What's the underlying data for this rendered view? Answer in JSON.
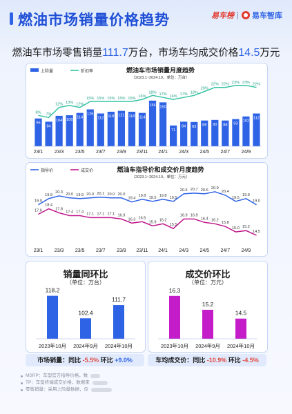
{
  "header": {
    "title": "燃油市场销量价格趋势",
    "brand_left": "易车榜",
    "brand_right": "易车智库"
  },
  "subtitle": {
    "prefix": "燃油车市场零售销量",
    "volume": "111.7",
    "mid": "万台，市场车均成交价格",
    "price": "14.5",
    "suffix": "万元"
  },
  "chart_data": [
    {
      "type": "bar",
      "title": "燃油车市场销量月度趋势",
      "subtitle": "（2023.1~2024.10，单位：万台）",
      "categories": [
        "23/1",
        "23/2",
        "23/3",
        "23/4",
        "23/5",
        "23/6",
        "23/7",
        "23/8",
        "23/9",
        "23/10",
        "23/11",
        "23/12",
        "24/1",
        "24/2",
        "24/3",
        "24/4",
        "24/5",
        "24/6",
        "24/7",
        "24/8",
        "24/9",
        "24/10"
      ],
      "x_tick_labels": [
        "23/1",
        "23/3",
        "23/5",
        "23/7",
        "23/9",
        "23/11",
        "24/1",
        "24/3",
        "24/5",
        "24/7",
        "24/9"
      ],
      "series": [
        {
          "name": "上险量",
          "kind": "bar",
          "color": "#2f63e6",
          "values": [
            95,
            84,
            104,
            106,
            114,
            126,
            112,
            118,
            121,
            118,
            114,
            156,
            150,
            71,
            84,
            83,
            88,
            90,
            88,
            93,
            102,
            112
          ]
        },
        {
          "name": "折扣率",
          "kind": "line",
          "color": "#34c3a3",
          "values": [
            8,
            7,
            12,
            13,
            12,
            15,
            15,
            15,
            15,
            15,
            16,
            18,
            17,
            16,
            17,
            18,
            20,
            22,
            22,
            23,
            23,
            22
          ],
          "labels": [
            "8%",
            "7%",
            "12%",
            "13%",
            "12%",
            "15%",
            "15%",
            "15%",
            "15%",
            "15%",
            "16%",
            "18%",
            "17%",
            "16%",
            "17%",
            "18%",
            "20%",
            "22%",
            "22%",
            "23%",
            "23%",
            "22%"
          ]
        }
      ]
    },
    {
      "type": "line",
      "title": "燃油车指导价和成交价月度趋势",
      "subtitle": "（2023.1~2024.10，单位：万元）",
      "categories": [
        "23/1",
        "23/2",
        "23/3",
        "23/4",
        "23/5",
        "23/6",
        "23/7",
        "23/8",
        "23/9",
        "23/10",
        "23/11",
        "23/12",
        "24/1",
        "24/2",
        "24/3",
        "24/4",
        "24/5",
        "24/6",
        "24/7",
        "24/8",
        "24/9",
        "24/10"
      ],
      "x_tick_labels": [
        "23/1",
        "23/3",
        "23/5",
        "23/7",
        "23/9",
        "23/11",
        "24/1",
        "24/3",
        "24/5",
        "24/7",
        "24/9"
      ],
      "series": [
        {
          "name": "指导价",
          "color": "#2f63e6",
          "values": [
            19.0,
            19.9,
            20.3,
            20.0,
            19.9,
            20.0,
            20.1,
            20.0,
            20.0,
            19.4,
            19.8,
            19.5,
            19.8,
            19.5,
            20.6,
            20.7,
            20.6,
            20.9,
            20.4,
            19.5,
            19.9,
            19.0
          ]
        },
        {
          "name": "成交价",
          "color": "#c1178b",
          "values": [
            17.6,
            18.4,
            17.8,
            17.4,
            17.4,
            17.1,
            17.1,
            17.1,
            16.9,
            16.3,
            16.5,
            15.9,
            16.2,
            15.5,
            16.9,
            16.9,
            16.4,
            16.2,
            15.8,
            15.0,
            15.2,
            14.5
          ]
        }
      ]
    },
    {
      "type": "bar",
      "title": "销量同环比",
      "unit_note": "（单位：万台）",
      "categories": [
        "2023年10月",
        "2024年9月",
        "2024年10月"
      ],
      "values": [
        118.2,
        102.4,
        111.7
      ],
      "color": "#2f63e6",
      "summary": {
        "label": "市场销量：同比",
        "yoy": "-5.5%",
        "mid": "环比",
        "mom": "+9.0%"
      }
    },
    {
      "type": "bar",
      "title": "成交价环比",
      "unit_note": "（单位：万元）",
      "categories": [
        "2023年10月",
        "2024年9月",
        "2024年10月"
      ],
      "values": [
        16.3,
        15.2,
        14.5
      ],
      "color": "#c41cc9",
      "summary": {
        "label": "车均成交价：同比",
        "yoy": "-10.9%",
        "mid": "环比",
        "mom": "-4.5%"
      }
    }
  ],
  "notes": [
    {
      "text": "MSRP：车型官方指导价格，数"
    },
    {
      "text": "TP：车型终端成交价格，数据来"
    },
    {
      "text": "零售销量：采用上险量数据，仅"
    }
  ],
  "colors": {
    "accent": "#2f63e6",
    "teal": "#34c3a3",
    "magenta": "#c1178b",
    "purple": "#c41cc9",
    "red": "#e04a3f"
  }
}
